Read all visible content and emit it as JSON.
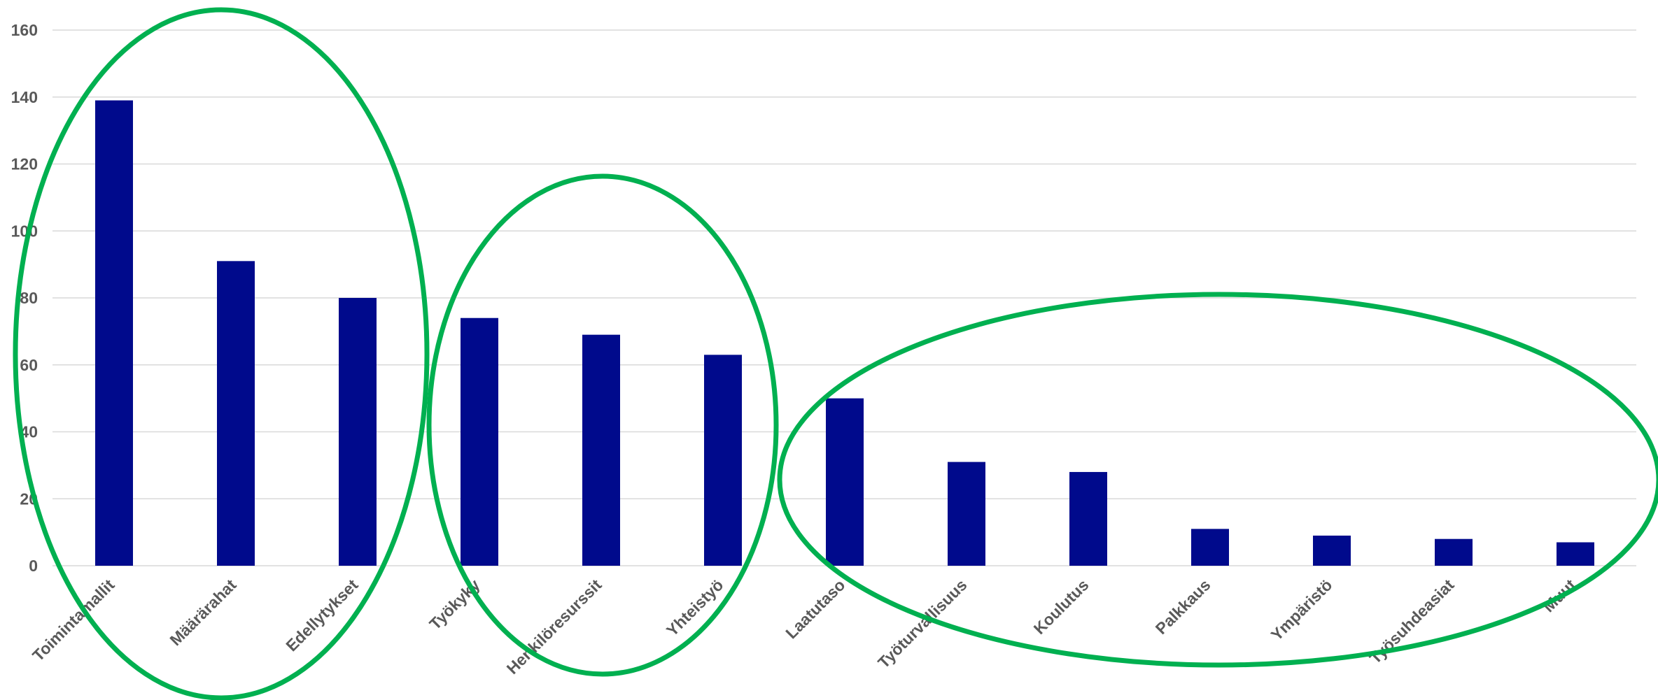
{
  "chart_data": {
    "type": "bar",
    "categories": [
      "Toimintamallit",
      "Määrärahat",
      "Edellytykset",
      "Työkyky",
      "Henkilöresurssit",
      "Yhteistyö",
      "Laatutaso",
      "Työturvallisuus",
      "Koulutus",
      "Palkkaus",
      "Ympäristö",
      "Työsuhdeasiat",
      "Muut"
    ],
    "values": [
      139,
      91,
      80,
      74,
      69,
      63,
      50,
      31,
      28,
      11,
      9,
      8,
      7
    ],
    "ylim": [
      0,
      160
    ],
    "yticks": [
      "0",
      "20",
      "40",
      "60",
      "80",
      "100",
      "120",
      "140",
      "160"
    ],
    "grid": true,
    "legend": "none",
    "bar_color": "#000a8c",
    "highlight_color": "#00b050",
    "groups": [
      {
        "categories": [
          "Toimintamallit",
          "Määrärahat",
          "Edellytykset"
        ]
      },
      {
        "categories": [
          "Työkyky",
          "Henkilöresurssit",
          "Yhteistyö"
        ]
      },
      {
        "categories": [
          "Laatutaso",
          "Työturvallisuus",
          "Koulutus",
          "Palkkaus",
          "Ympäristö",
          "Työsuhdeasiat",
          "Muut"
        ]
      }
    ]
  }
}
